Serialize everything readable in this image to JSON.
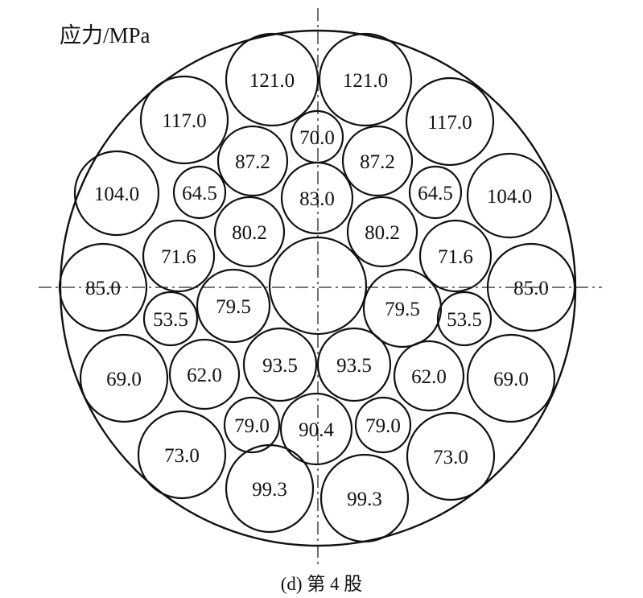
{
  "unit_label": "应力/MPa",
  "caption": "(d) 第 4 股",
  "wire_stresses": [
    "121.0",
    "121.0",
    "70.0",
    "117.0",
    "117.0",
    "87.2",
    "87.2",
    "104.0",
    "104.0",
    "64.5",
    "64.5",
    "83.0",
    "80.2",
    "80.2",
    "71.6",
    "71.6",
    "85.0",
    "85.0",
    "",
    "79.5",
    "79.5",
    "53.5",
    "53.5",
    "69.0",
    "69.0",
    "62.0",
    "62.0",
    "93.5",
    "93.5",
    "79.0",
    "79.0",
    "90.4",
    "73.0",
    "73.0",
    "99.3",
    "99.3"
  ],
  "colors": {
    "stroke": "#111111",
    "background": "#ffffff"
  }
}
